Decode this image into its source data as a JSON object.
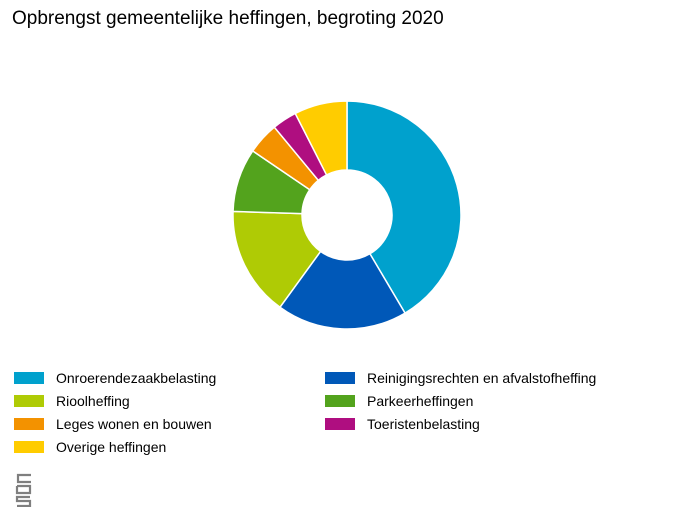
{
  "chart_data": {
    "type": "pie",
    "donut": true,
    "title": "Opbrengst gemeentelijke heffingen, begroting 2020",
    "legend_position": "bottom",
    "series": [
      {
        "name": "Onroerendezaakbelasting",
        "value": 41.5,
        "color": "#00a1cd"
      },
      {
        "name": "Reinigingsrechten en afvalstofheffing",
        "value": 18.5,
        "color": "#0058b8"
      },
      {
        "name": "Rioolheffing",
        "value": 15.5,
        "color": "#afcb05"
      },
      {
        "name": "Parkeerheffingen",
        "value": 9.0,
        "color": "#53a31d"
      },
      {
        "name": "Leges wonen en bouwen",
        "value": 4.5,
        "color": "#f39200"
      },
      {
        "name": "Toeristenbelasting",
        "value": 3.5,
        "color": "#af0e80"
      },
      {
        "name": "Overige heffingen",
        "value": 7.5,
        "color": "#ffcc00"
      }
    ]
  },
  "branding": {
    "logo": "cbs-logo"
  }
}
